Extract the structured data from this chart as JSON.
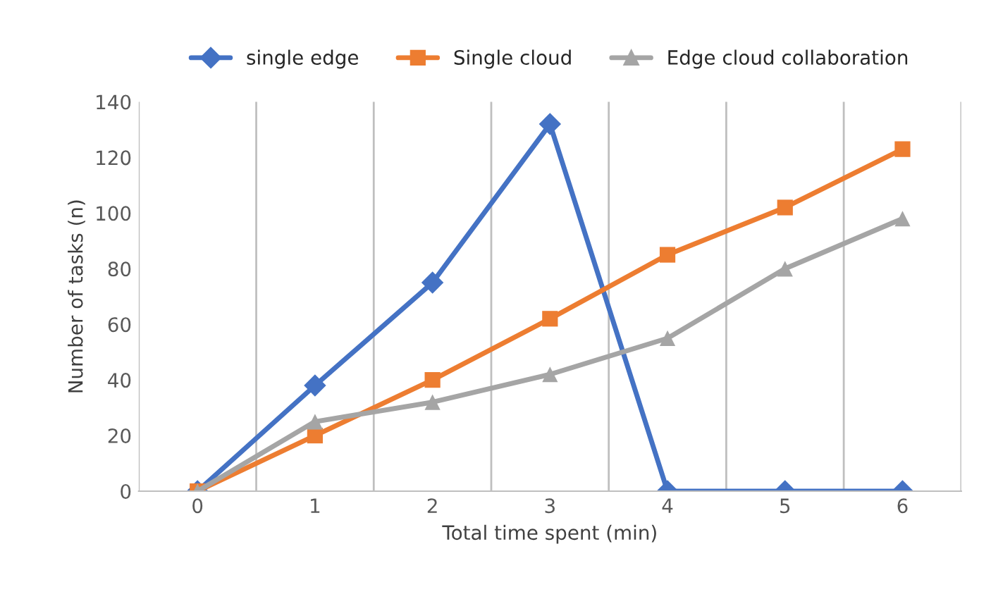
{
  "chart_data": {
    "type": "line",
    "xlabel": "Total time spent (min)",
    "ylabel": "Number of tasks (n)",
    "categories": [
      "0",
      "1",
      "2",
      "3",
      "4",
      "5",
      "6"
    ],
    "series": [
      {
        "name": "single edge",
        "color": "#4472c4",
        "marker": "diamond",
        "values": [
          0,
          38,
          75,
          132,
          0,
          0,
          0
        ]
      },
      {
        "name": "Single cloud",
        "color": "#ed7d31",
        "marker": "square",
        "values": [
          0,
          20,
          40,
          62,
          85,
          102,
          123
        ]
      },
      {
        "name": "Edge cloud collaboration",
        "color": "#a5a5a5",
        "marker": "triangle",
        "values": [
          0,
          25,
          32,
          42,
          55,
          80,
          98
        ]
      }
    ],
    "ylim": [
      0,
      140
    ],
    "yticks": [
      0,
      20,
      40,
      60,
      80,
      100,
      120,
      140
    ],
    "grid": "x",
    "legend": "top",
    "line_style": "solid"
  }
}
